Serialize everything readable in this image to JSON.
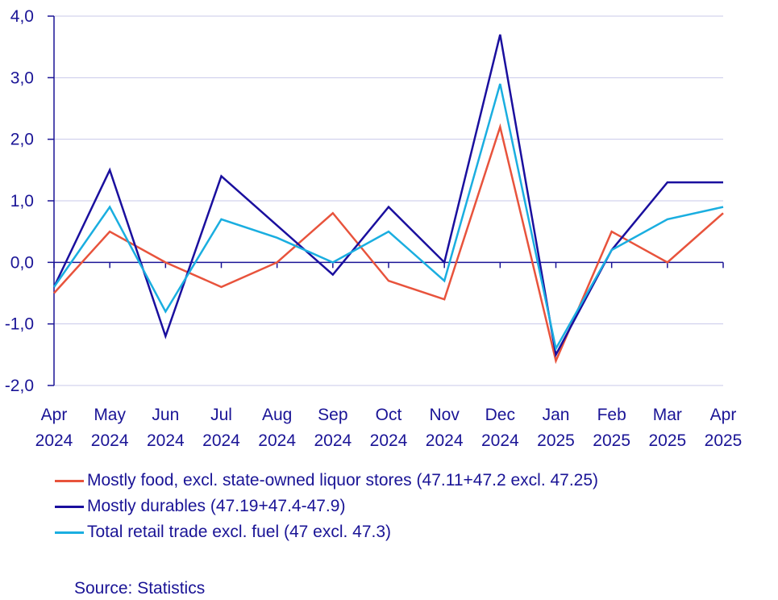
{
  "chart_data": {
    "type": "line",
    "categories": [
      [
        "Apr",
        "2024"
      ],
      [
        "May",
        "2024"
      ],
      [
        "Jun",
        "2024"
      ],
      [
        "Jul",
        "2024"
      ],
      [
        "Aug",
        "2024"
      ],
      [
        "Sep",
        "2024"
      ],
      [
        "Oct",
        "2024"
      ],
      [
        "Nov",
        "2024"
      ],
      [
        "Dec",
        "2024"
      ],
      [
        "Jan",
        "2025"
      ],
      [
        "Feb",
        "2025"
      ],
      [
        "Mar",
        "2025"
      ],
      [
        "Apr",
        "2025"
      ]
    ],
    "ylim": [
      -2.0,
      4.0
    ],
    "yticks": [
      "4,0",
      "3,0",
      "2,0",
      "1,0",
      "0,0",
      "-1,0",
      "-2,0"
    ],
    "ytick_values": [
      4,
      3,
      2,
      1,
      0,
      -1,
      -2
    ],
    "grid": true,
    "legend_position": "bottom",
    "series": [
      {
        "name": "Mostly food, excl. state-owned liquor stores (47.11+47.2 excl. 47.25)",
        "color": "#e8533c",
        "values": [
          -0.5,
          0.5,
          0.0,
          -0.4,
          0.0,
          0.8,
          -0.3,
          -0.6,
          2.2,
          -1.6,
          0.5,
          0.0,
          0.8
        ]
      },
      {
        "name": "Mostly durables (47.19+47.4-47.9)",
        "color": "#1a0f9e",
        "values": [
          -0.4,
          1.5,
          -1.2,
          1.4,
          0.6,
          -0.2,
          0.9,
          0.0,
          3.7,
          -1.5,
          0.2,
          1.3,
          1.3
        ]
      },
      {
        "name": "Total retail trade excl. fuel (47 excl. 47.3)",
        "color": "#1aaee0",
        "values": [
          -0.4,
          0.9,
          -0.8,
          0.7,
          0.4,
          0.0,
          0.5,
          -0.3,
          2.9,
          -1.4,
          0.2,
          0.7,
          0.9
        ]
      }
    ]
  },
  "source": "Source: Statistics",
  "colors": {
    "axis": "#1a1496",
    "grid": "#c8c8ea"
  }
}
